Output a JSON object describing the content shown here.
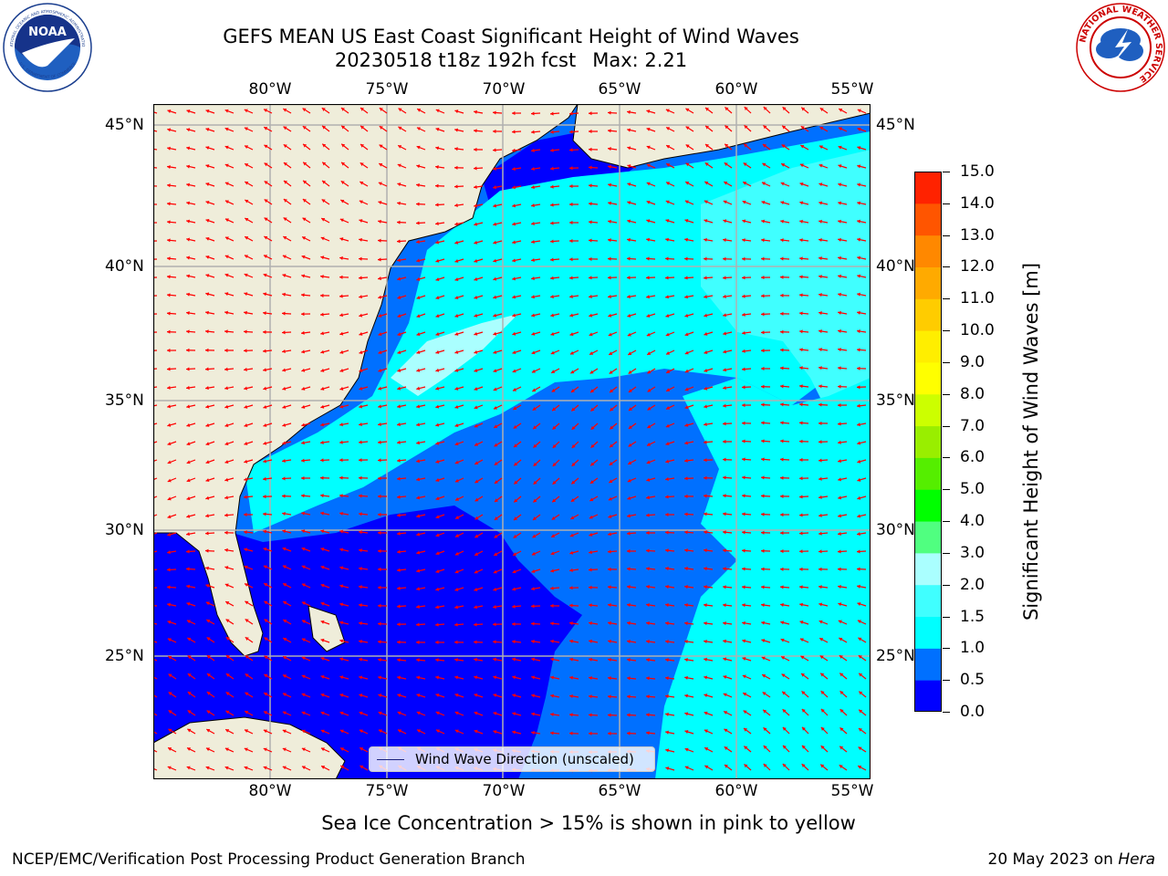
{
  "header": {
    "title_line1": "GEFS MEAN US East Coast Significant Height of Wind Waves",
    "run_info": "20230518 t18z 192h fcst",
    "max_label": "Max: 2.21"
  },
  "logos": {
    "left": {
      "text": "NOAA",
      "ring_top": "NATIONAL OCEANIC AND ATMOSPHERIC ADMINISTRATION",
      "ring_bottom": "U.S. DEPARTMENT OF COMMERCE"
    },
    "right": {
      "ring": "NATIONAL WEATHER SERVICE"
    }
  },
  "map": {
    "lon_labels": [
      "80°W",
      "75°W",
      "70°W",
      "65°W",
      "60°W",
      "55°W"
    ],
    "lat_labels": [
      "45°N",
      "40°N",
      "35°N",
      "30°N",
      "25°N"
    ],
    "legend_label": "Wind Wave Direction (unscaled)",
    "colors": {
      "land": "#efedda",
      "coast": "#000000",
      "grid": "#b0b0b0",
      "arrow": "#ff0000"
    }
  },
  "colorbar": {
    "title": "Significant Height of Wind Waves [m]",
    "tick_labels": [
      "0.0",
      "0.5",
      "1.0",
      "1.5",
      "2.0",
      "3.0",
      "4.0",
      "5.0",
      "6.0",
      "7.0",
      "8.0",
      "9.0",
      "10.0",
      "11.0",
      "12.0",
      "13.0",
      "14.0",
      "15.0"
    ],
    "colors": [
      "#0000ff",
      "#0070ff",
      "#00ffff",
      "#40ffff",
      "#aaffff",
      "#50ff80",
      "#00ff00",
      "#55ee00",
      "#99ee00",
      "#ccff00",
      "#ffff00",
      "#ffee00",
      "#ffcc00",
      "#ffaa00",
      "#ff8800",
      "#ff5500",
      "#ff2200",
      "#ff0000"
    ]
  },
  "footer": {
    "note": "Sea Ice Concentration > 15% is shown in pink to yellow",
    "left": "NCEP/EMC/Verification Post Processing Product Generation Branch",
    "date": "20 May 2023 on ",
    "host": "Hera"
  }
}
